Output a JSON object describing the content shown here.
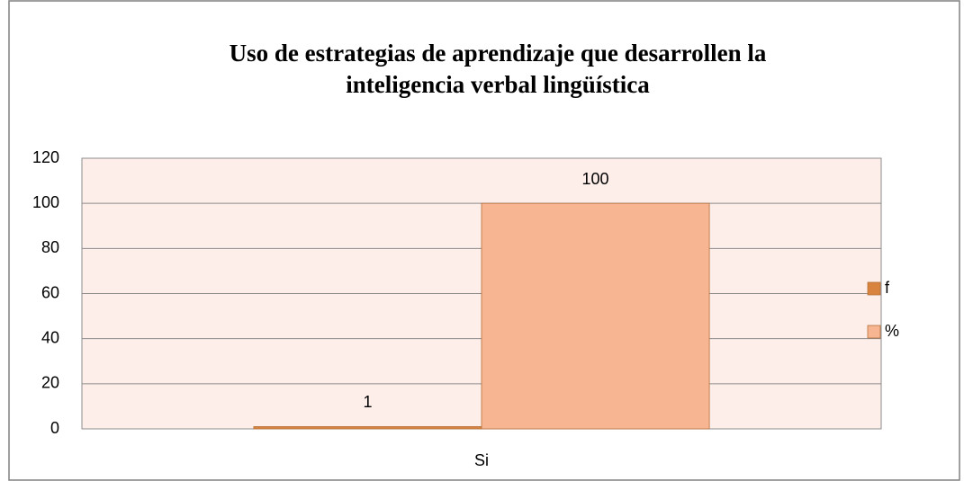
{
  "chart_data": {
    "type": "bar",
    "title": [
      "Uso de estrategias de aprendizaje que desarrollen la",
      "inteligencia verbal lingüística"
    ],
    "categories": [
      "Si"
    ],
    "series": [
      {
        "name": "f",
        "color": "#d9843e",
        "values": [
          1
        ],
        "value_labels": [
          "1"
        ]
      },
      {
        "name": "%",
        "color": "#f8b592",
        "values": [
          100
        ],
        "value_labels": [
          "100"
        ]
      }
    ],
    "ylim": [
      0,
      120
    ],
    "yticks": [
      0,
      20,
      40,
      60,
      80,
      100,
      120
    ],
    "grid": true,
    "legend": "right",
    "plot_background": "#fdeeea"
  }
}
